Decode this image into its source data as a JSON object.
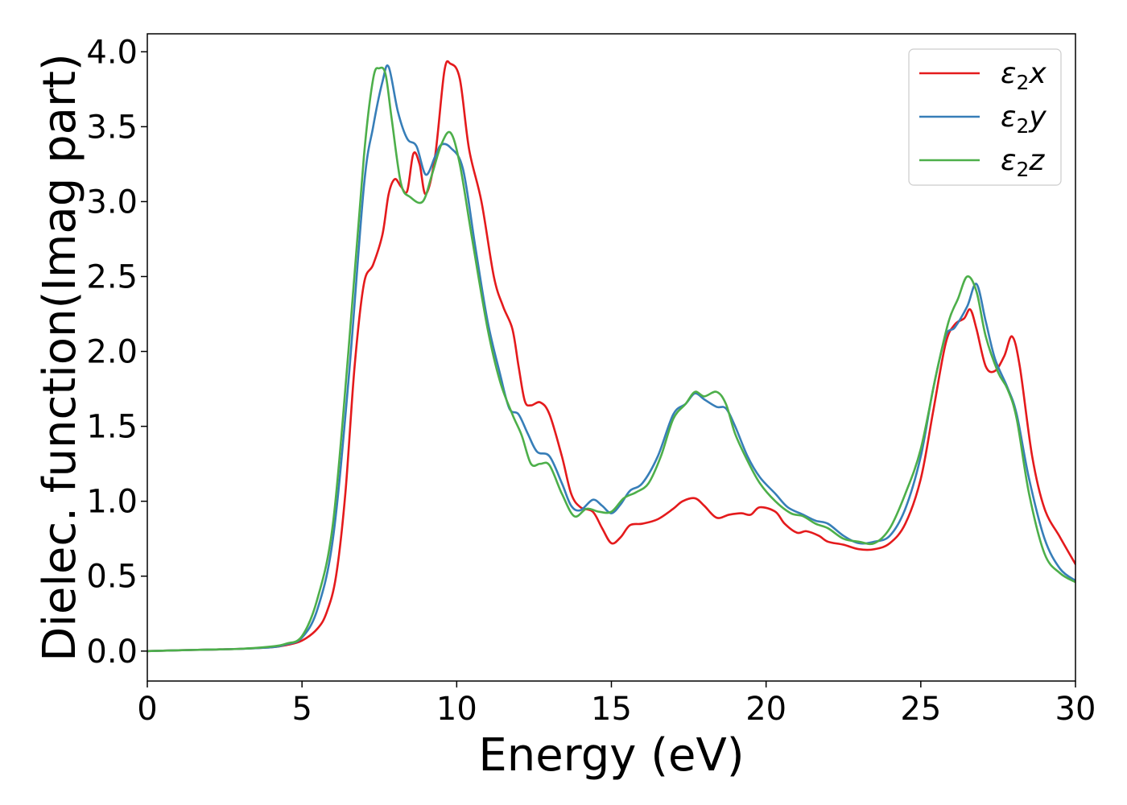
{
  "chart_data": {
    "type": "line",
    "title": "",
    "xlabel": "Energy (eV)",
    "ylabel": "Dielec. function(Imag part)",
    "xlim": [
      0,
      30
    ],
    "ylim": [
      -0.2,
      4.12
    ],
    "xticks": [
      0,
      5,
      10,
      15,
      20,
      25,
      30
    ],
    "xtick_labels": [
      "0",
      "5",
      "10",
      "15",
      "20",
      "25",
      "30"
    ],
    "yticks": [
      0.0,
      0.5,
      1.0,
      1.5,
      2.0,
      2.5,
      3.0,
      3.5,
      4.0
    ],
    "ytick_labels": [
      "0.0",
      "0.5",
      "1.0",
      "1.5",
      "2.0",
      "2.5",
      "3.0",
      "3.5",
      "4.0"
    ],
    "grid": false,
    "legend": {
      "position": "top-right"
    },
    "series": [
      {
        "name": "ε₂x",
        "legend_main": "ε",
        "legend_sub": "2",
        "legend_tail": "x",
        "color": "#e41a1c",
        "points": [
          [
            0,
            0
          ],
          [
            1,
            0.005
          ],
          [
            2,
            0.01
          ],
          [
            3,
            0.015
          ],
          [
            4,
            0.025
          ],
          [
            4.5,
            0.04
          ],
          [
            5,
            0.07
          ],
          [
            5.5,
            0.15
          ],
          [
            5.8,
            0.26
          ],
          [
            6.1,
            0.5
          ],
          [
            6.4,
            1.05
          ],
          [
            6.7,
            1.9
          ],
          [
            7.0,
            2.45
          ],
          [
            7.3,
            2.58
          ],
          [
            7.6,
            2.78
          ],
          [
            7.8,
            3.05
          ],
          [
            8.0,
            3.15
          ],
          [
            8.2,
            3.1
          ],
          [
            8.4,
            3.07
          ],
          [
            8.6,
            3.32
          ],
          [
            8.8,
            3.25
          ],
          [
            9.0,
            3.05
          ],
          [
            9.3,
            3.3
          ],
          [
            9.6,
            3.87
          ],
          [
            9.8,
            3.92
          ],
          [
            10.1,
            3.82
          ],
          [
            10.4,
            3.35
          ],
          [
            10.8,
            3.0
          ],
          [
            11.2,
            2.5
          ],
          [
            11.5,
            2.3
          ],
          [
            11.8,
            2.15
          ],
          [
            12.0,
            1.9
          ],
          [
            12.2,
            1.67
          ],
          [
            12.4,
            1.64
          ],
          [
            12.7,
            1.66
          ],
          [
            13.0,
            1.58
          ],
          [
            13.4,
            1.3
          ],
          [
            13.7,
            1.05
          ],
          [
            14.0,
            0.96
          ],
          [
            14.4,
            0.93
          ],
          [
            14.7,
            0.82
          ],
          [
            15.0,
            0.72
          ],
          [
            15.3,
            0.76
          ],
          [
            15.6,
            0.84
          ],
          [
            16.0,
            0.85
          ],
          [
            16.5,
            0.88
          ],
          [
            17.0,
            0.95
          ],
          [
            17.3,
            1.0
          ],
          [
            17.7,
            1.02
          ],
          [
            18.0,
            0.97
          ],
          [
            18.4,
            0.89
          ],
          [
            18.8,
            0.91
          ],
          [
            19.2,
            0.92
          ],
          [
            19.5,
            0.91
          ],
          [
            19.8,
            0.96
          ],
          [
            20.3,
            0.93
          ],
          [
            20.6,
            0.85
          ],
          [
            21.0,
            0.79
          ],
          [
            21.3,
            0.8
          ],
          [
            21.7,
            0.77
          ],
          [
            22.0,
            0.73
          ],
          [
            22.5,
            0.71
          ],
          [
            23.0,
            0.68
          ],
          [
            23.5,
            0.68
          ],
          [
            24.0,
            0.72
          ],
          [
            24.5,
            0.85
          ],
          [
            25.0,
            1.15
          ],
          [
            25.4,
            1.6
          ],
          [
            25.8,
            2.05
          ],
          [
            26.1,
            2.18
          ],
          [
            26.4,
            2.22
          ],
          [
            26.6,
            2.28
          ],
          [
            26.8,
            2.15
          ],
          [
            27.1,
            1.9
          ],
          [
            27.4,
            1.87
          ],
          [
            27.7,
            1.97
          ],
          [
            27.95,
            2.1
          ],
          [
            28.2,
            1.9
          ],
          [
            28.6,
            1.3
          ],
          [
            29.0,
            0.95
          ],
          [
            29.5,
            0.76
          ],
          [
            30,
            0.58
          ]
        ]
      },
      {
        "name": "ε₂y",
        "legend_main": "ε",
        "legend_sub": "2",
        "legend_tail": "y",
        "color": "#377eb8",
        "points": [
          [
            0,
            0
          ],
          [
            1,
            0.005
          ],
          [
            2,
            0.01
          ],
          [
            3,
            0.015
          ],
          [
            4,
            0.025
          ],
          [
            4.5,
            0.045
          ],
          [
            5,
            0.09
          ],
          [
            5.5,
            0.28
          ],
          [
            6.0,
            0.75
          ],
          [
            6.5,
            1.8
          ],
          [
            7.0,
            3.1
          ],
          [
            7.3,
            3.5
          ],
          [
            7.6,
            3.8
          ],
          [
            7.8,
            3.9
          ],
          [
            8.1,
            3.6
          ],
          [
            8.4,
            3.42
          ],
          [
            8.7,
            3.37
          ],
          [
            9.0,
            3.18
          ],
          [
            9.3,
            3.3
          ],
          [
            9.5,
            3.38
          ],
          [
            9.8,
            3.36
          ],
          [
            10.2,
            3.22
          ],
          [
            10.6,
            2.7
          ],
          [
            11.0,
            2.2
          ],
          [
            11.4,
            1.85
          ],
          [
            11.7,
            1.62
          ],
          [
            12.0,
            1.58
          ],
          [
            12.3,
            1.45
          ],
          [
            12.6,
            1.33
          ],
          [
            13.0,
            1.3
          ],
          [
            13.4,
            1.12
          ],
          [
            13.7,
            0.97
          ],
          [
            14.0,
            0.94
          ],
          [
            14.4,
            1.01
          ],
          [
            14.7,
            0.97
          ],
          [
            15.0,
            0.92
          ],
          [
            15.3,
            0.98
          ],
          [
            15.6,
            1.07
          ],
          [
            16.0,
            1.12
          ],
          [
            16.5,
            1.3
          ],
          [
            17.0,
            1.58
          ],
          [
            17.4,
            1.65
          ],
          [
            17.7,
            1.72
          ],
          [
            18.0,
            1.68
          ],
          [
            18.4,
            1.63
          ],
          [
            18.7,
            1.62
          ],
          [
            19.0,
            1.5
          ],
          [
            19.4,
            1.3
          ],
          [
            19.8,
            1.16
          ],
          [
            20.3,
            1.05
          ],
          [
            20.7,
            0.96
          ],
          [
            21.2,
            0.91
          ],
          [
            21.6,
            0.87
          ],
          [
            22.0,
            0.85
          ],
          [
            22.5,
            0.77
          ],
          [
            23.0,
            0.72
          ],
          [
            23.5,
            0.73
          ],
          [
            24.0,
            0.77
          ],
          [
            24.5,
            0.95
          ],
          [
            25.0,
            1.3
          ],
          [
            25.4,
            1.75
          ],
          [
            25.8,
            2.1
          ],
          [
            26.1,
            2.16
          ],
          [
            26.5,
            2.3
          ],
          [
            26.8,
            2.45
          ],
          [
            27.1,
            2.2
          ],
          [
            27.4,
            1.95
          ],
          [
            27.8,
            1.76
          ],
          [
            28.1,
            1.58
          ],
          [
            28.5,
            1.15
          ],
          [
            29.0,
            0.75
          ],
          [
            29.5,
            0.55
          ],
          [
            30,
            0.47
          ]
        ]
      },
      {
        "name": "ε₂z",
        "legend_main": "ε",
        "legend_sub": "2",
        "legend_tail": "z",
        "color": "#4daf4a",
        "points": [
          [
            0,
            0
          ],
          [
            1,
            0.005
          ],
          [
            2,
            0.01
          ],
          [
            3,
            0.015
          ],
          [
            4,
            0.03
          ],
          [
            4.5,
            0.05
          ],
          [
            5,
            0.1
          ],
          [
            5.5,
            0.35
          ],
          [
            6.0,
            0.85
          ],
          [
            6.5,
            2.0
          ],
          [
            7.0,
            3.3
          ],
          [
            7.3,
            3.82
          ],
          [
            7.5,
            3.89
          ],
          [
            7.7,
            3.85
          ],
          [
            7.9,
            3.55
          ],
          [
            8.2,
            3.12
          ],
          [
            8.5,
            3.03
          ],
          [
            8.9,
            3.0
          ],
          [
            9.2,
            3.18
          ],
          [
            9.5,
            3.38
          ],
          [
            9.8,
            3.46
          ],
          [
            10.1,
            3.25
          ],
          [
            10.5,
            2.75
          ],
          [
            11.0,
            2.15
          ],
          [
            11.4,
            1.8
          ],
          [
            11.8,
            1.58
          ],
          [
            12.1,
            1.44
          ],
          [
            12.4,
            1.25
          ],
          [
            12.7,
            1.25
          ],
          [
            13.0,
            1.24
          ],
          [
            13.4,
            1.05
          ],
          [
            13.8,
            0.9
          ],
          [
            14.2,
            0.95
          ],
          [
            14.6,
            0.93
          ],
          [
            15.0,
            0.93
          ],
          [
            15.4,
            1.02
          ],
          [
            15.8,
            1.06
          ],
          [
            16.2,
            1.12
          ],
          [
            16.6,
            1.3
          ],
          [
            17.0,
            1.55
          ],
          [
            17.4,
            1.65
          ],
          [
            17.7,
            1.73
          ],
          [
            18.0,
            1.7
          ],
          [
            18.4,
            1.73
          ],
          [
            18.7,
            1.65
          ],
          [
            19.0,
            1.45
          ],
          [
            19.4,
            1.27
          ],
          [
            19.8,
            1.12
          ],
          [
            20.3,
            1.0
          ],
          [
            20.8,
            0.92
          ],
          [
            21.2,
            0.9
          ],
          [
            21.6,
            0.85
          ],
          [
            22.0,
            0.82
          ],
          [
            22.5,
            0.75
          ],
          [
            23.0,
            0.73
          ],
          [
            23.5,
            0.72
          ],
          [
            24.0,
            0.82
          ],
          [
            24.5,
            1.05
          ],
          [
            25.0,
            1.35
          ],
          [
            25.5,
            1.85
          ],
          [
            25.9,
            2.2
          ],
          [
            26.2,
            2.35
          ],
          [
            26.5,
            2.5
          ],
          [
            26.8,
            2.4
          ],
          [
            27.1,
            2.1
          ],
          [
            27.5,
            1.86
          ],
          [
            27.8,
            1.75
          ],
          [
            28.1,
            1.55
          ],
          [
            28.5,
            1.05
          ],
          [
            29.0,
            0.65
          ],
          [
            29.5,
            0.52
          ],
          [
            30,
            0.46
          ]
        ]
      }
    ]
  }
}
